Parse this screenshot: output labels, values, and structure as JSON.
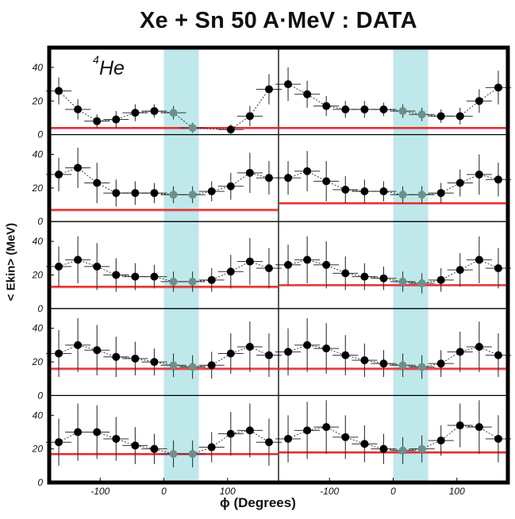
{
  "page": {
    "title": "Xe + Sn 50 A·MeV : DATA",
    "ylabel": "< Ekin> (MeV)",
    "xlabel": "ϕ (Degrees)",
    "particle_label": "He",
    "particle_mass_number": "4"
  },
  "colors": {
    "frame": "#000000",
    "highlight_band": "#bfe8ea",
    "reference_line": "#e8301c",
    "reference_line_edge": "#c82ab0",
    "marker": "#000000",
    "marker_in_band": "#6f8f8a",
    "error_bar": "#333333"
  },
  "chart_data": {
    "type": "scatter",
    "layout": "grid of 5 rows by 2 columns, shared axes",
    "xlim": [
      -180,
      180
    ],
    "ylim": [
      0,
      48
    ],
    "x_ticks": [
      -100,
      0,
      100
    ],
    "x_tick_labels": [
      "-100",
      "0",
      "100"
    ],
    "y_ticks": [
      0,
      20,
      40
    ],
    "y_tick_labels": [
      "0",
      "20",
      "40"
    ],
    "highlight_band": [
      0,
      55
    ],
    "grid": false,
    "x_error_halfwidth": 20,
    "panels": [
      {
        "row": 0,
        "col": 0,
        "x": [
          -165,
          -135,
          -105,
          -75,
          -45,
          -15,
          15,
          45,
          105,
          135,
          165
        ],
        "y": [
          26,
          15,
          8,
          9,
          13,
          14,
          13,
          4,
          3,
          11,
          27
        ],
        "yerr": [
          8,
          6,
          4,
          5,
          5,
          4,
          4,
          3,
          3,
          6,
          9
        ],
        "reference": 4
      },
      {
        "row": 0,
        "col": 1,
        "x": [
          -165,
          -135,
          -105,
          -75,
          -45,
          -15,
          15,
          45,
          75,
          105,
          135,
          165
        ],
        "y": [
          30,
          24,
          17,
          15,
          15,
          15,
          14,
          12,
          11,
          11,
          20,
          28
        ],
        "yerr": [
          10,
          8,
          6,
          5,
          5,
          4,
          4,
          4,
          4,
          5,
          7,
          10
        ],
        "reference": 4
      },
      {
        "row": 1,
        "col": 0,
        "x": [
          -165,
          -135,
          -105,
          -75,
          -45,
          -15,
          15,
          45,
          75,
          105,
          135,
          165
        ],
        "y": [
          28,
          32,
          23,
          17,
          17,
          17,
          16,
          16,
          18,
          21,
          29,
          26
        ],
        "yerr": [
          10,
          12,
          12,
          8,
          7,
          6,
          5,
          5,
          6,
          8,
          12,
          10
        ],
        "reference": 7
      },
      {
        "row": 1,
        "col": 1,
        "x": [
          -165,
          -135,
          -105,
          -75,
          -45,
          -15,
          15,
          45,
          75,
          105,
          135,
          165
        ],
        "y": [
          26,
          30,
          24,
          19,
          18,
          18,
          16,
          16,
          17,
          23,
          28,
          25
        ],
        "yerr": [
          10,
          12,
          12,
          8,
          7,
          6,
          5,
          5,
          6,
          8,
          12,
          10
        ],
        "reference": 11
      },
      {
        "row": 2,
        "col": 0,
        "x": [
          -165,
          -135,
          -105,
          -75,
          -45,
          -15,
          15,
          45,
          75,
          105,
          135,
          165
        ],
        "y": [
          25,
          29,
          25,
          20,
          19,
          19,
          16,
          16,
          17,
          22,
          28,
          24
        ],
        "yerr": [
          12,
          14,
          14,
          10,
          8,
          7,
          6,
          6,
          7,
          10,
          14,
          12
        ],
        "reference": 13
      },
      {
        "row": 2,
        "col": 1,
        "x": [
          -165,
          -135,
          -105,
          -75,
          -45,
          -15,
          15,
          45,
          75,
          105,
          135,
          165
        ],
        "y": [
          26,
          29,
          26,
          21,
          19,
          18,
          16,
          15,
          17,
          23,
          29,
          24
        ],
        "yerr": [
          12,
          14,
          14,
          10,
          8,
          7,
          6,
          6,
          7,
          10,
          14,
          12
        ],
        "reference": 14
      },
      {
        "row": 3,
        "col": 0,
        "x": [
          -165,
          -135,
          -105,
          -75,
          -45,
          -15,
          15,
          45,
          75,
          105,
          135,
          165
        ],
        "y": [
          25,
          30,
          27,
          23,
          22,
          20,
          18,
          17,
          18,
          25,
          29,
          24
        ],
        "yerr": [
          14,
          16,
          15,
          12,
          10,
          8,
          7,
          7,
          8,
          12,
          15,
          13
        ],
        "reference": 16
      },
      {
        "row": 3,
        "col": 1,
        "x": [
          -165,
          -135,
          -105,
          -75,
          -45,
          -15,
          15,
          45,
          75,
          105,
          135,
          165
        ],
        "y": [
          26,
          30,
          28,
          24,
          21,
          19,
          18,
          17,
          19,
          26,
          29,
          24
        ],
        "yerr": [
          14,
          16,
          15,
          12,
          10,
          8,
          7,
          7,
          8,
          12,
          15,
          13
        ],
        "reference": 16
      },
      {
        "row": 4,
        "col": 0,
        "x": [
          -165,
          -135,
          -105,
          -75,
          -45,
          -15,
          15,
          45,
          75,
          105,
          135,
          165
        ],
        "y": [
          24,
          30,
          30,
          26,
          22,
          20,
          17,
          17,
          21,
          29,
          31,
          24
        ],
        "yerr": [
          14,
          17,
          16,
          13,
          11,
          9,
          8,
          8,
          9,
          13,
          16,
          14
        ],
        "reference": 17
      },
      {
        "row": 4,
        "col": 1,
        "x": [
          -165,
          -135,
          -105,
          -75,
          -45,
          -15,
          15,
          45,
          75,
          105,
          135,
          165
        ],
        "y": [
          26,
          31,
          33,
          27,
          23,
          20,
          19,
          20,
          25,
          34,
          33,
          26
        ],
        "yerr": [
          14,
          17,
          16,
          13,
          11,
          9,
          8,
          8,
          9,
          13,
          16,
          14
        ],
        "reference": 18
      }
    ]
  }
}
